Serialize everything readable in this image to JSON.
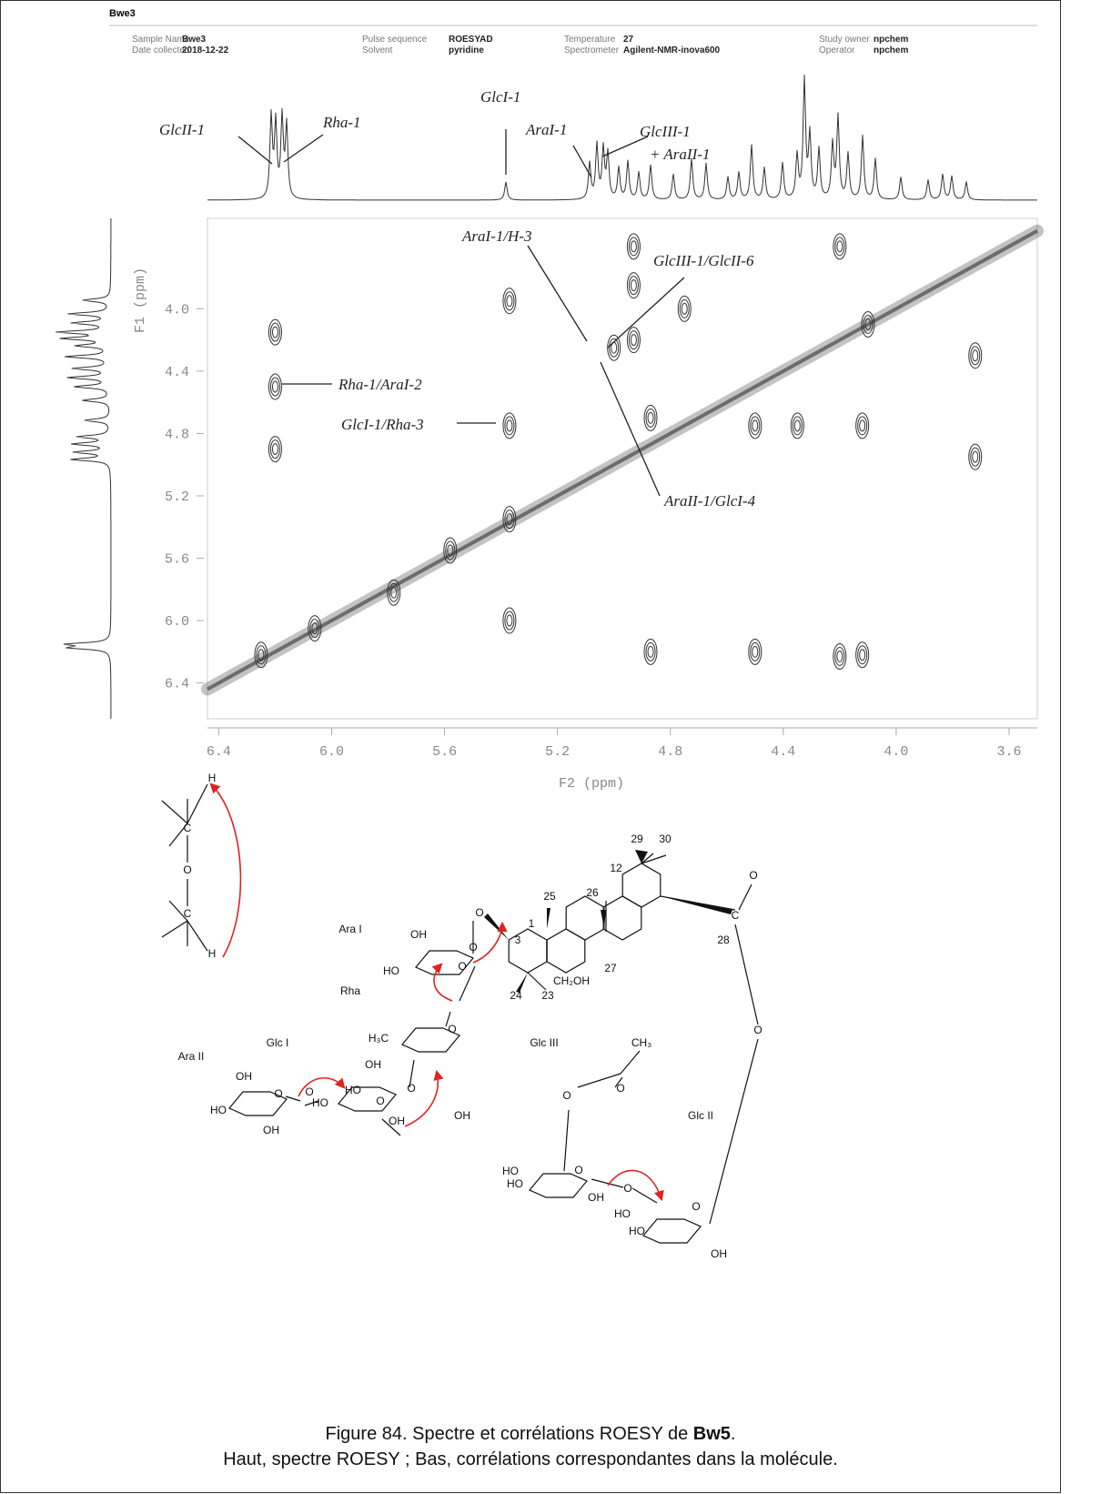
{
  "header": {
    "title": "Bwe3",
    "fields": [
      {
        "label": "Sample Name",
        "value": "Bwe3"
      },
      {
        "label": "Date collected",
        "value": "2018-12-22"
      },
      {
        "label": "Pulse sequence",
        "value": "ROESYAD"
      },
      {
        "label": "Solvent",
        "value": "pyridine"
      },
      {
        "label": "Temperature",
        "value": "27"
      },
      {
        "label": "Spectrometer",
        "value": "Agilent-NMR-inova600"
      },
      {
        "label": "Study owner",
        "value": "npchem"
      },
      {
        "label": "Operator",
        "value": "npchem"
      }
    ]
  },
  "spectrum": {
    "xlabel": "F2 (ppm)",
    "ylabel": "F1 (ppm)",
    "xlim": [
      6.44,
      3.5
    ],
    "ylim": [
      3.42,
      6.63
    ],
    "xticks": [
      6.4,
      {
        "value": 6,
        "label": "6.0"
      },
      5.6,
      5.2,
      4.8,
      4.4,
      {
        "value": 4,
        "label": "4.0"
      },
      3.6
    ],
    "yticks": [
      {
        "value": 4,
        "label": "4.0"
      },
      4.4,
      4.8,
      5.2,
      5.6,
      {
        "value": 6,
        "label": "6.0"
      },
      6.4
    ],
    "cross_peaks": {
      "x": [
        6.2,
        6.2,
        6.2,
        5.37,
        5.37,
        5.37,
        5.37,
        5.0,
        4.93,
        4.93,
        4.87,
        4.87,
        4.5,
        4.2,
        4.12,
        4.5,
        4.35,
        4.12,
        3.72,
        3.72,
        6.25,
        6.06,
        5.78,
        5.58,
        4.93,
        4.75,
        4.2,
        4.1
      ],
      "y": [
        4.15,
        4.5,
        4.9,
        3.95,
        4.75,
        5.35,
        6.0,
        4.25,
        4.2,
        3.85,
        4.7,
        6.2,
        6.2,
        6.23,
        6.22,
        4.75,
        4.75,
        4.75,
        4.3,
        4.95,
        6.22,
        6.05,
        5.82,
        5.55,
        3.6,
        4.0,
        3.6,
        4.1
      ]
    },
    "annotations": [
      "GlcII-1",
      "Rha-1",
      "GlcI-1",
      "AraI-1",
      "GlcIII-1",
      "+ AraII-1",
      "AraI-1/H-3",
      "GlcIII-1/GlcII-6",
      "Rha-1/AraI-2",
      "GlcI-1/Rha-3",
      "AraII-1/GlcI-4"
    ]
  },
  "structure": {
    "labels": [
      "Ara I",
      "Rha",
      "Glc I",
      "Ara II",
      "Glc III",
      "Glc II",
      "29",
      "30",
      "12",
      "25",
      "26",
      "1",
      "3",
      "27",
      "28",
      "24",
      "23",
      "CH₂OH",
      "OH",
      "HO",
      "O",
      "O",
      "O",
      "O",
      "H₃C",
      "OH",
      "O",
      "OH",
      "HO",
      "HO",
      "O",
      "OH",
      "O",
      "OH",
      "HO",
      "O",
      "OH",
      "CH₃",
      "O",
      "O",
      "O",
      "HO",
      "HO",
      "OH",
      "O",
      "O",
      "HO",
      "HO",
      "OH",
      "C",
      "O",
      "O",
      "H",
      "C",
      "O",
      "C",
      "H"
    ]
  },
  "caption": {
    "line1": {
      "before": "Figure 84. Spectre et corrélations ROESY de ",
      "bold": "Bw5",
      "after": "."
    },
    "line2": "Haut, spectre ROESY ; Bas, corrélations correspondantes dans la molécule."
  }
}
